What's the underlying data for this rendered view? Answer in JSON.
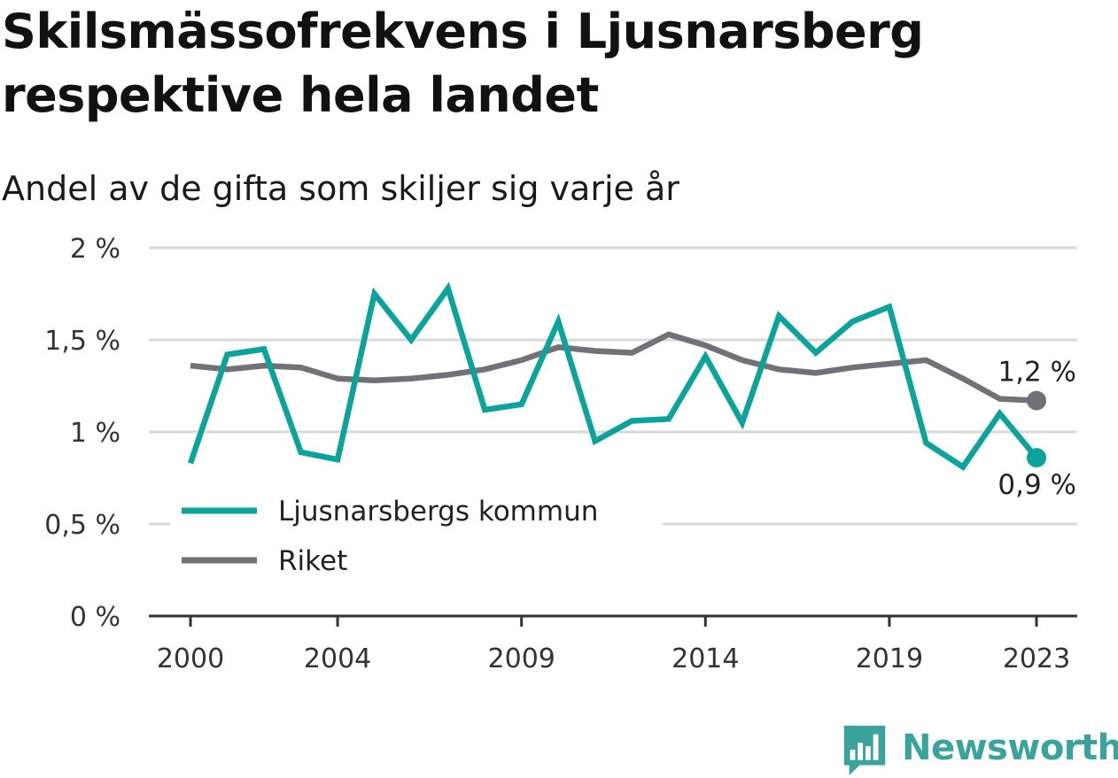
{
  "title": "Skilsmässofrekvens i Ljusnarsberg respektive hela landet",
  "subtitle": "Andel av de gifta som skiljer sig varje år",
  "chart_data": {
    "type": "line",
    "title": "Skilsmässofrekvens i Ljusnarsberg respektive hela landet",
    "subtitle": "Andel av de gifta som skiljer sig varje år",
    "x": [
      2000,
      2001,
      2002,
      2003,
      2004,
      2005,
      2006,
      2007,
      2008,
      2009,
      2010,
      2011,
      2012,
      2013,
      2014,
      2015,
      2016,
      2017,
      2018,
      2019,
      2020,
      2021,
      2022,
      2023
    ],
    "x_tick_labels": [
      "2000",
      "2004",
      "2009",
      "2014",
      "2019",
      "2023"
    ],
    "x_tick_values": [
      2000,
      2004,
      2009,
      2014,
      2019,
      2023
    ],
    "y_tick_labels": [
      "0 %",
      "0,5 %",
      "1 %",
      "1,5 %",
      "2 %"
    ],
    "y_tick_values": [
      0,
      0.5,
      1,
      1.5,
      2
    ],
    "ylim": [
      0,
      2
    ],
    "xlim": [
      2000,
      2023
    ],
    "grid": true,
    "legend_position": "bottom-left",
    "series": [
      {
        "name": "Ljusnarsbergs kommun",
        "color": "#0ba39a",
        "values": [
          0.83,
          1.42,
          1.45,
          0.89,
          0.85,
          1.75,
          1.5,
          1.78,
          1.12,
          1.15,
          1.6,
          0.95,
          1.06,
          1.07,
          1.41,
          1.05,
          1.63,
          1.43,
          1.6,
          1.68,
          0.94,
          0.81,
          1.1,
          0.86
        ],
        "end_label": "0,9 %"
      },
      {
        "name": "Riket",
        "color": "#727177",
        "values": [
          1.36,
          1.34,
          1.36,
          1.35,
          1.29,
          1.28,
          1.29,
          1.31,
          1.34,
          1.39,
          1.46,
          1.44,
          1.43,
          1.53,
          1.47,
          1.39,
          1.34,
          1.32,
          1.35,
          1.37,
          1.39,
          1.29,
          1.18,
          1.17
        ],
        "end_label": "1,2 %"
      }
    ]
  },
  "logo": {
    "text": "Newsworthy",
    "color": "#3aa39c"
  },
  "colors": {
    "grid": "#d9d9d9",
    "axis": "#333333",
    "text": "#1a1a1a"
  }
}
